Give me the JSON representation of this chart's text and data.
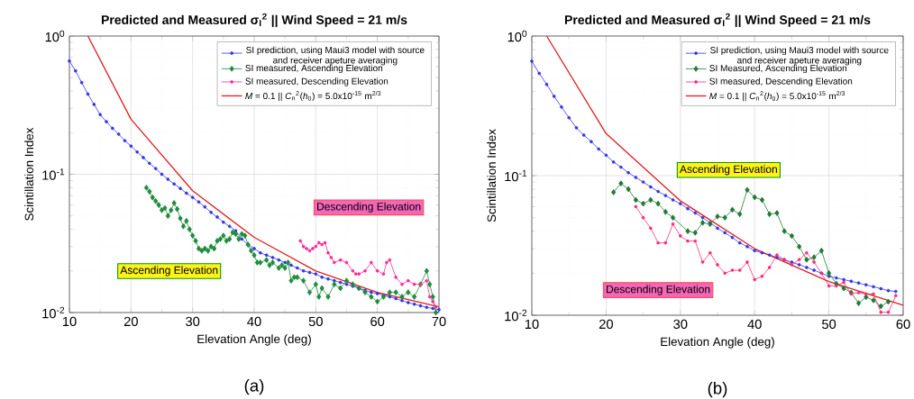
{
  "chart_data": [
    {
      "type": "line",
      "title": "Predicted and Measured σ$_{I}$$^{2}$ || Wind Speed = 21 m/s",
      "xlabel": "Elevation Angle (deg)",
      "ylabel": "Scintillation Index",
      "log": "y",
      "grid": true,
      "legend": "top right",
      "xlim": [
        10,
        70
      ],
      "ylim": [
        0.01,
        1
      ],
      "xticks": [
        10,
        20,
        30,
        40,
        50,
        60,
        70
      ],
      "yticks": [
        {
          "value": 0.01,
          "label": "10$^{-2}$"
        },
        {
          "value": 0.1,
          "label": "10$^{-1}$"
        },
        {
          "value": 1,
          "label": "10$^{0}$"
        }
      ],
      "annotations": [
        "Ascending Elevation",
        "Descending Elevation",
        "(a)"
      ],
      "series": [
        {
          "name": "SI prediction, using Maui3 model with source and receiver apeture averaging",
          "color": "#3434e8",
          "marker": "circle",
          "x": [
            10,
            11,
            12,
            13,
            14,
            15,
            16,
            17,
            18,
            19,
            20,
            21,
            22,
            23,
            24,
            25,
            26,
            27,
            28,
            29,
            30,
            31,
            32,
            33,
            34,
            35,
            36,
            37,
            38,
            39,
            40,
            41,
            42,
            43,
            44,
            45,
            46,
            47,
            48,
            49,
            50,
            51,
            52,
            53,
            54,
            55,
            56,
            57,
            58,
            59,
            60,
            61,
            62,
            63,
            64,
            65,
            66,
            67,
            68,
            69,
            70
          ],
          "values": [
            0.66,
            0.56,
            0.46,
            0.38,
            0.32,
            0.27,
            0.24,
            0.215,
            0.195,
            0.175,
            0.16,
            0.145,
            0.132,
            0.12,
            0.11,
            0.1,
            0.092,
            0.085,
            0.079,
            0.073,
            0.068,
            0.063,
            0.058,
            0.053,
            0.049,
            0.045,
            0.042,
            0.039,
            0.034,
            0.031,
            0.029,
            0.027,
            0.026,
            0.025,
            0.024,
            0.023,
            0.022,
            0.021,
            0.02,
            0.0195,
            0.019,
            0.018,
            0.0175,
            0.017,
            0.0165,
            0.016,
            0.0155,
            0.015,
            0.0145,
            0.014,
            0.0137,
            0.0133,
            0.013,
            0.0126,
            0.0122,
            0.0118,
            0.0115,
            0.0112,
            0.0109,
            0.0107,
            0.0105
          ]
        },
        {
          "name": "SI measured, Ascending Elevation",
          "color": "#1e8c3c",
          "marker": "diamond",
          "x": [
            22.5,
            23,
            23.5,
            24,
            24.5,
            25,
            25.5,
            26,
            26.5,
            27,
            27.5,
            28,
            28.5,
            29,
            29.5,
            30,
            30.5,
            31,
            31.5,
            32,
            32.5,
            33,
            33.5,
            34,
            34.5,
            35,
            35.5,
            36,
            36.5,
            37,
            37.5,
            38,
            38.5,
            39,
            39.5,
            40,
            40.5,
            41,
            42,
            42.5,
            43,
            44,
            44.5,
            45,
            45.5,
            46,
            46.5,
            47,
            48,
            49,
            50,
            50.5,
            51,
            52,
            53,
            54,
            55,
            56,
            57,
            58,
            59,
            60,
            61,
            62,
            63,
            64,
            65,
            66,
            67,
            68,
            68.5,
            69,
            69.5
          ],
          "values": [
            0.08,
            0.075,
            0.068,
            0.064,
            0.06,
            0.055,
            0.057,
            0.05,
            0.055,
            0.062,
            0.056,
            0.048,
            0.042,
            0.046,
            0.04,
            0.036,
            0.033,
            0.029,
            0.028,
            0.029,
            0.028,
            0.03,
            0.029,
            0.033,
            0.034,
            0.036,
            0.033,
            0.034,
            0.038,
            0.037,
            0.034,
            0.037,
            0.036,
            0.031,
            0.028,
            0.026,
            0.023,
            0.023,
            0.024,
            0.022,
            0.023,
            0.021,
            0.022,
            0.021,
            0.023,
            0.017,
            0.018,
            0.018,
            0.017,
            0.014,
            0.016,
            0.013,
            0.015,
            0.013,
            0.016,
            0.015,
            0.017,
            0.016,
            0.015,
            0.014,
            0.013,
            0.012,
            0.013,
            0.014,
            0.014,
            0.013,
            0.014,
            0.013,
            0.016,
            0.02,
            0.016,
            0.013,
            0.01
          ]
        },
        {
          "name": "SI measured, Descending Elevation",
          "color": "#ff2a9a",
          "marker": "circle",
          "x": [
            47.5,
            48,
            48.5,
            49,
            49.5,
            50,
            50.5,
            51,
            51.5,
            52,
            52.5,
            53,
            54,
            55,
            56,
            56.5,
            57,
            58,
            59,
            60,
            61,
            61.5,
            62,
            63,
            64,
            65,
            66,
            67,
            68,
            68.5,
            69,
            69.5
          ],
          "values": [
            0.033,
            0.03,
            0.029,
            0.028,
            0.029,
            0.03,
            0.032,
            0.031,
            0.032,
            0.027,
            0.025,
            0.023,
            0.024,
            0.023,
            0.02,
            0.019,
            0.019,
            0.02,
            0.023,
            0.02,
            0.019,
            0.023,
            0.024,
            0.018,
            0.016,
            0.017,
            0.016,
            0.016,
            0.017,
            0.013,
            0.012,
            0.011
          ]
        },
        {
          "name": "*M* = 0.1 || *C*$_{n}$$^{2}$(*h*$_{0}$) = 5.0x10$^{-15}$ m$^{2/3}$",
          "color": "#e02020",
          "marker": "none",
          "x": [
            13,
            20,
            30,
            40,
            50,
            60,
            70
          ],
          "values": [
            1.0,
            0.25,
            0.076,
            0.035,
            0.02,
            0.014,
            0.011
          ]
        }
      ]
    },
    {
      "type": "line",
      "title": "Predicted and Measured σ$_{I}$$^{2}$ || Wind Speed = 21 m/s",
      "xlabel": "Elevation Angle (deg)",
      "ylabel": "Scintillation Index",
      "log": "y",
      "grid": true,
      "legend": "top right",
      "xlim": [
        10,
        60
      ],
      "ylim": [
        0.01,
        1
      ],
      "xticks": [
        10,
        20,
        30,
        40,
        50,
        60
      ],
      "yticks": [
        {
          "value": 0.01,
          "label": "10$^{-2}$"
        },
        {
          "value": 0.1,
          "label": "10$^{-1}$"
        },
        {
          "value": 1,
          "label": "10$^{0}$"
        }
      ],
      "annotations": [
        "Ascending Elevation",
        "Descending Elevation",
        "(b)"
      ],
      "series": [
        {
          "name": "SI prediction, using Maui3 model with source and receiver apeture averaging",
          "color": "#3434e8",
          "marker": "circle",
          "x": [
            10,
            11,
            12,
            13,
            14,
            15,
            16,
            17,
            18,
            19,
            20,
            21,
            22,
            23,
            24,
            25,
            26,
            27,
            28,
            29,
            30,
            31,
            32,
            33,
            34,
            35,
            36,
            37,
            38,
            39,
            40,
            41,
            42,
            43,
            44,
            45,
            46,
            47,
            48,
            49,
            50,
            51,
            52,
            53,
            54,
            55,
            56,
            57,
            58,
            59
          ],
          "values": [
            0.66,
            0.54,
            0.45,
            0.37,
            0.31,
            0.26,
            0.22,
            0.195,
            0.175,
            0.155,
            0.14,
            0.125,
            0.115,
            0.105,
            0.097,
            0.09,
            0.083,
            0.077,
            0.072,
            0.067,
            0.063,
            0.058,
            0.054,
            0.05,
            0.046,
            0.042,
            0.039,
            0.036,
            0.033,
            0.031,
            0.029,
            0.028,
            0.027,
            0.026,
            0.025,
            0.024,
            0.023,
            0.022,
            0.021,
            0.02,
            0.019,
            0.0185,
            0.018,
            0.0175,
            0.017,
            0.0165,
            0.016,
            0.0155,
            0.015,
            0.0148
          ]
        },
        {
          "name": "SI Measured, Ascending Elevation",
          "color": "#1e7a34",
          "marker": "diamond",
          "x": [
            21,
            22,
            23,
            24,
            25,
            26,
            27,
            28,
            29,
            31,
            32,
            33,
            34,
            35,
            36,
            37,
            38,
            39,
            40,
            41,
            42,
            43,
            44,
            45,
            46,
            47,
            48,
            49,
            50,
            51,
            52,
            53,
            54,
            55,
            56,
            57,
            58
          ],
          "values": [
            0.076,
            0.088,
            0.08,
            0.067,
            0.063,
            0.067,
            0.063,
            0.055,
            0.05,
            0.04,
            0.039,
            0.046,
            0.045,
            0.051,
            0.05,
            0.057,
            0.053,
            0.079,
            0.07,
            0.067,
            0.053,
            0.054,
            0.04,
            0.037,
            0.031,
            0.025,
            0.026,
            0.029,
            0.02,
            0.0168,
            0.0156,
            0.0145,
            0.0122,
            0.0135,
            0.0128,
            0.0116,
            0.0125
          ]
        },
        {
          "name": "SI measured, Descending Elevation",
          "color": "#ff2a7a",
          "marker": "circle",
          "x": [
            24,
            25,
            26,
            27,
            28,
            29,
            30,
            31,
            32,
            33,
            34,
            35,
            36,
            37,
            38,
            39,
            40,
            41,
            42,
            43,
            44,
            45,
            46,
            47,
            48,
            49,
            50,
            51,
            52,
            53,
            54,
            55,
            56,
            57,
            58,
            59
          ],
          "values": [
            0.06,
            0.05,
            0.042,
            0.033,
            0.033,
            0.045,
            0.037,
            0.034,
            0.034,
            0.024,
            0.028,
            0.023,
            0.02,
            0.021,
            0.021,
            0.024,
            0.018,
            0.019,
            0.022,
            0.027,
            0.025,
            0.023,
            0.025,
            0.028,
            0.024,
            0.02,
            0.0162,
            0.0162,
            0.0172,
            0.0142,
            0.0145,
            0.0142,
            0.0142,
            0.0105,
            0.0105,
            0.0138
          ]
        },
        {
          "name": "*M* = 0.1 || *C*$_{n}$$^{2}$(*h*$_{0}$) = 5.0x10$^{-15}$ m$^{2/3}$",
          "color": "#e02020",
          "marker": "none",
          "x": [
            12,
            20,
            30,
            40,
            50,
            60
          ],
          "values": [
            1.0,
            0.2,
            0.066,
            0.03,
            0.0174,
            0.0118
          ]
        }
      ]
    }
  ]
}
